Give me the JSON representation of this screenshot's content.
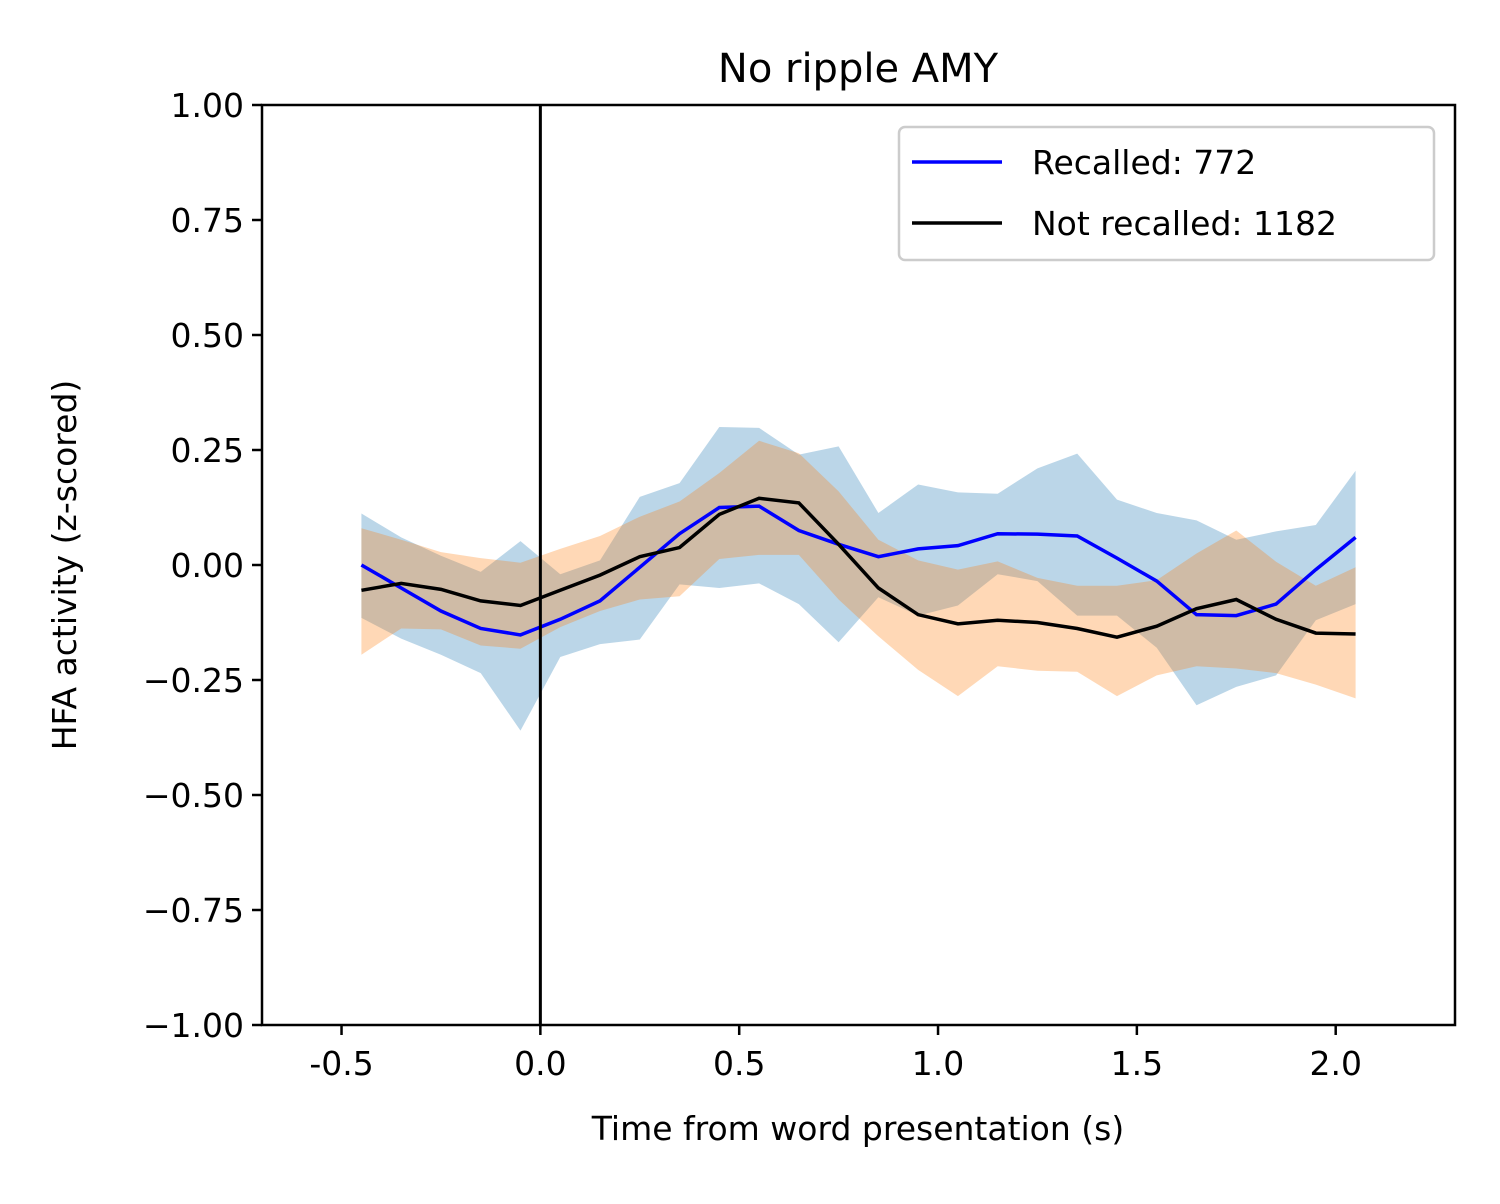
{
  "chart_data": {
    "type": "line",
    "title": "No ripple AMY",
    "xlabel": "Time from word presentation (s)",
    "ylabel": "HFA activity (z-scored)",
    "xlim": [
      -0.7,
      2.3
    ],
    "ylim": [
      -1.0,
      1.0
    ],
    "x_ticks": [
      -0.5,
      0.0,
      0.5,
      1.0,
      1.5,
      2.0
    ],
    "x_tick_labels": [
      "-0.5",
      "0.0",
      "0.5",
      "1.0",
      "1.5",
      "2.0"
    ],
    "y_ticks": [
      1.0,
      0.75,
      0.5,
      0.25,
      0.0,
      -0.25,
      -0.5,
      -0.75,
      -1.0
    ],
    "y_tick_labels": [
      "1.00",
      "0.75",
      "0.50",
      "0.25",
      "0.00",
      "−0.25",
      "−0.50",
      "−0.75",
      "−1.00"
    ],
    "grid": false,
    "legend_position": "top-right",
    "vline_x": 0.0,
    "x": [
      -0.45,
      -0.35,
      -0.25,
      -0.15,
      -0.05,
      0.05,
      0.15,
      0.25,
      0.35,
      0.45,
      0.55,
      0.65,
      0.75,
      0.85,
      0.95,
      1.05,
      1.15,
      1.25,
      1.35,
      1.45,
      1.55,
      1.65,
      1.75,
      1.85,
      1.95,
      2.05
    ],
    "series": [
      {
        "name": "Recalled: 772",
        "color": "#0000ff",
        "band_color": "#1f77b4",
        "values": [
          0.0,
          -0.05,
          -0.1,
          -0.138,
          -0.152,
          -0.118,
          -0.078,
          -0.005,
          0.068,
          0.125,
          0.128,
          0.075,
          0.045,
          0.018,
          0.035,
          0.042,
          0.068,
          0.067,
          0.063,
          0.015,
          -0.035,
          -0.108,
          -0.11,
          -0.085,
          -0.01,
          0.06
        ],
        "upper": [
          0.112,
          0.06,
          0.02,
          -0.015,
          0.052,
          -0.02,
          0.01,
          0.148,
          0.178,
          0.3,
          0.298,
          0.24,
          0.258,
          0.113,
          0.175,
          0.158,
          0.155,
          0.21,
          0.242,
          0.142,
          0.113,
          0.097,
          0.055,
          0.073,
          0.087,
          0.205
        ],
        "lower": [
          -0.115,
          -0.16,
          -0.195,
          -0.235,
          -0.36,
          -0.2,
          -0.172,
          -0.162,
          -0.042,
          -0.05,
          -0.04,
          -0.085,
          -0.168,
          -0.07,
          -0.11,
          -0.088,
          -0.02,
          -0.035,
          -0.11,
          -0.11,
          -0.18,
          -0.305,
          -0.265,
          -0.24,
          -0.12,
          -0.085
        ]
      },
      {
        "name": "Not recalled: 1182",
        "color": "#000000",
        "band_color": "#ff7f0e",
        "values": [
          -0.055,
          -0.04,
          -0.053,
          -0.078,
          -0.088,
          -0.055,
          -0.022,
          0.018,
          0.038,
          0.11,
          0.145,
          0.135,
          0.045,
          -0.05,
          -0.108,
          -0.128,
          -0.12,
          -0.125,
          -0.138,
          -0.157,
          -0.133,
          -0.095,
          -0.075,
          -0.118,
          -0.148,
          -0.15
        ],
        "upper": [
          0.08,
          0.055,
          0.028,
          0.015,
          0.005,
          0.035,
          0.063,
          0.105,
          0.138,
          0.2,
          0.27,
          0.243,
          0.16,
          0.055,
          0.01,
          -0.01,
          0.008,
          -0.028,
          -0.045,
          -0.045,
          -0.033,
          0.025,
          0.075,
          0.007,
          -0.045,
          -0.005
        ],
        "lower": [
          -0.195,
          -0.138,
          -0.14,
          -0.175,
          -0.182,
          -0.135,
          -0.1,
          -0.075,
          -0.068,
          0.013,
          0.022,
          0.022,
          -0.075,
          -0.155,
          -0.228,
          -0.285,
          -0.22,
          -0.23,
          -0.232,
          -0.285,
          -0.24,
          -0.22,
          -0.225,
          -0.235,
          -0.26,
          -0.29
        ]
      }
    ]
  }
}
